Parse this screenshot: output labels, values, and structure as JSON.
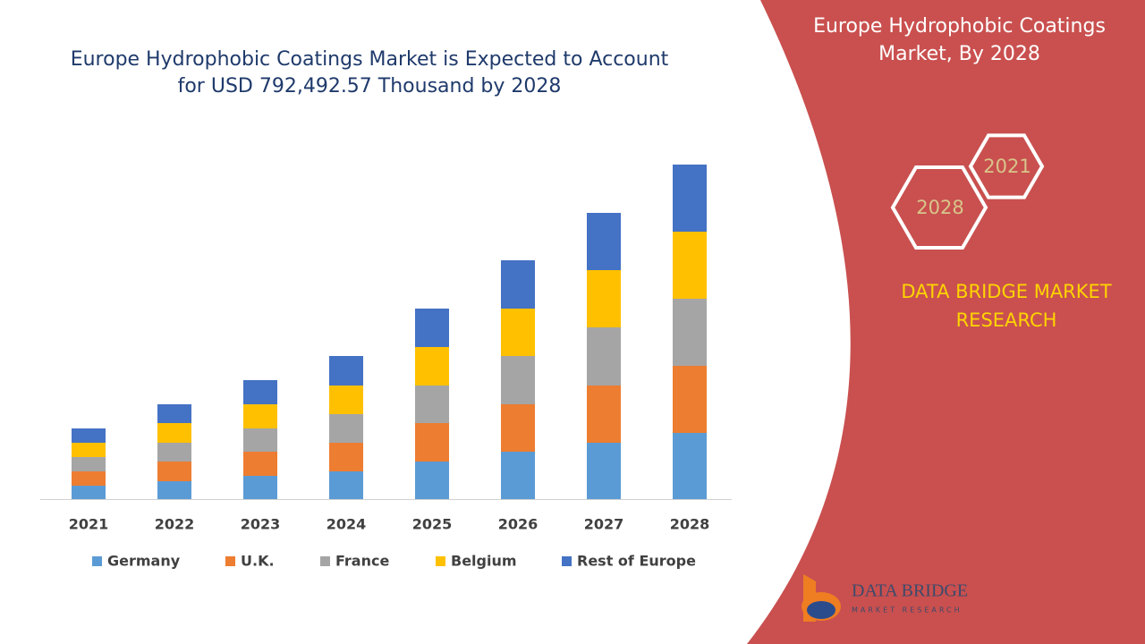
{
  "chart_data": {
    "type": "bar",
    "stacked": true,
    "title": "Europe Hydrophobic Coatings Market is Expected to Account for USD 792,492.57 Thousand by 2028",
    "categories": [
      "2021",
      "2022",
      "2023",
      "2024",
      "2025",
      "2026",
      "2027",
      "2028"
    ],
    "series": [
      {
        "name": "Germany",
        "color": "#5b9bd5",
        "values": [
          15,
          20,
          26,
          31,
          42,
          53,
          63,
          74
        ]
      },
      {
        "name": "U.K.",
        "color": "#ed7d31",
        "values": [
          16,
          22,
          27,
          32,
          43,
          53,
          64,
          75
        ]
      },
      {
        "name": "France",
        "color": "#a5a5a5",
        "values": [
          16,
          21,
          26,
          32,
          42,
          54,
          65,
          75
        ]
      },
      {
        "name": "Belgium",
        "color": "#ffc000",
        "values": [
          16,
          22,
          27,
          32,
          43,
          53,
          64,
          75
        ]
      },
      {
        "name": "Rest of Europe",
        "color": "#4472c4",
        "values": [
          16,
          21,
          27,
          33,
          43,
          54,
          64,
          75
        ]
      }
    ]
  },
  "panel": {
    "title": "Europe Hydrophobic Coatings Market, By 2028",
    "hexagons": [
      "2021",
      "2028"
    ],
    "brand": "DATA BRIDGE MARKET RESEARCH",
    "logo": "DATA BRIDGE",
    "logo_sub": "MARKET RESEARCH"
  }
}
